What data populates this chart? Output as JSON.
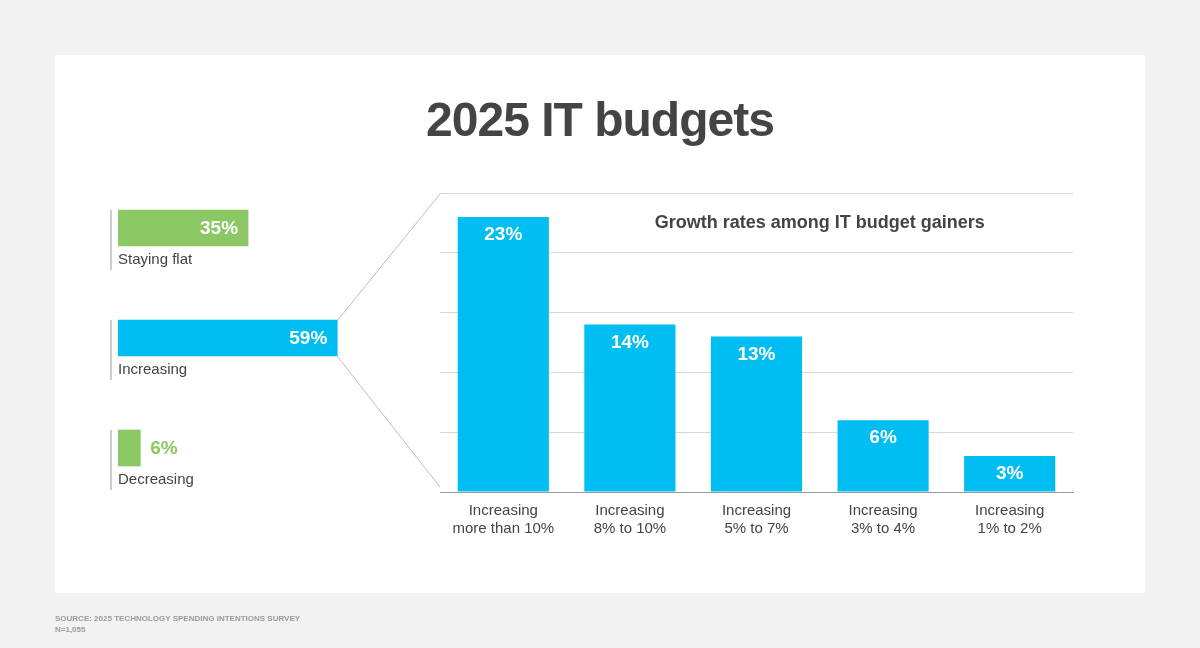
{
  "chart_data": [
    {
      "type": "other",
      "title": "2025 IT budgets",
      "annotations": [
        "SOURCE: 2025 TECHNOLOGY SPENDING INTENTIONS SURVEY",
        "N=1,055"
      ]
    },
    {
      "type": "bar",
      "orientation": "horizontal",
      "categories": [
        "Staying flat",
        "Increasing",
        "Decreasing"
      ],
      "values": [
        35,
        59,
        6
      ],
      "colors": [
        "#8cc864",
        "#00bef2",
        "#8cc864"
      ],
      "value_labels": [
        "35%",
        "59%",
        "6%"
      ],
      "tick_labels": false
    },
    {
      "type": "bar",
      "title": "Growth rates among IT budget gainers",
      "categories": [
        "Increasing more than 10%",
        "Increasing 8% to 10%",
        "Increasing 5% to 7%",
        "Increasing 3% to 4%",
        "Increasing 1% to 2%"
      ],
      "values": [
        23,
        14,
        13,
        6,
        3
      ],
      "color": "#00bef2",
      "value_labels": [
        "23%",
        "14%",
        "13%",
        "6%",
        "3%"
      ],
      "grid": "y",
      "tick_labels": "x"
    }
  ]
}
